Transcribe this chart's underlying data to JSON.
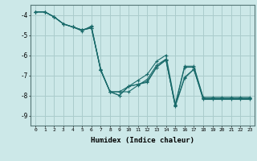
{
  "xlabel": "Humidex (Indice chaleur)",
  "xlim": [
    -0.5,
    23.5
  ],
  "ylim": [
    -9.5,
    -3.5
  ],
  "yticks": [
    -9,
    -8,
    -7,
    -6,
    -5,
    -4
  ],
  "xticks": [
    0,
    1,
    2,
    3,
    4,
    5,
    6,
    7,
    8,
    9,
    10,
    11,
    12,
    13,
    14,
    15,
    16,
    17,
    18,
    19,
    20,
    21,
    22,
    23
  ],
  "background_color": "#cce8e8",
  "grid_color": "#aacccc",
  "line_color": "#1a6b6b",
  "series": [
    {
      "x": [
        0,
        1,
        2,
        3,
        4,
        5,
        6,
        7,
        8,
        9,
        10,
        11,
        12,
        13,
        14,
        15,
        16,
        17,
        18,
        19,
        20,
        21,
        22,
        23
      ],
      "y": [
        -3.85,
        -3.85,
        -4.1,
        -4.45,
        -4.6,
        -4.75,
        -4.65,
        -6.75,
        -7.82,
        -7.82,
        -7.82,
        -7.5,
        -7.2,
        -6.5,
        -6.2,
        -8.5,
        -6.6,
        -6.6,
        -8.15,
        -8.15,
        -8.15,
        -8.15,
        -8.15,
        -8.15
      ]
    },
    {
      "x": [
        0,
        1,
        2,
        3,
        4,
        5,
        6,
        7,
        8,
        9,
        10,
        11,
        12,
        13,
        14,
        15,
        16,
        17,
        18,
        19,
        20,
        21,
        22,
        23
      ],
      "y": [
        -3.85,
        -3.85,
        -4.1,
        -4.45,
        -4.6,
        -4.75,
        -4.65,
        -6.7,
        -7.82,
        -7.82,
        -7.55,
        -7.25,
        -6.95,
        -6.3,
        -6.0,
        -8.45,
        -6.55,
        -6.55,
        -8.1,
        -8.1,
        -8.1,
        -8.1,
        -8.1,
        -8.1
      ]
    },
    {
      "x": [
        0,
        1,
        2,
        3,
        4,
        5,
        6,
        7,
        8,
        9,
        10,
        11,
        12,
        13,
        14,
        15,
        16,
        17,
        18,
        19,
        20,
        21,
        22,
        23
      ],
      "y": [
        -3.85,
        -3.85,
        -4.1,
        -4.45,
        -4.6,
        -4.75,
        -4.6,
        -6.75,
        -7.82,
        -8.0,
        -7.55,
        -7.45,
        -7.3,
        -6.6,
        -6.25,
        -8.5,
        -7.1,
        -6.7,
        -8.15,
        -8.15,
        -8.15,
        -8.15,
        -8.15,
        -8.15
      ]
    },
    {
      "x": [
        0,
        1,
        2,
        3,
        4,
        5,
        6,
        7,
        8,
        9,
        10,
        11,
        12,
        13,
        14,
        15,
        16,
        17,
        18,
        19,
        20,
        21,
        22,
        23
      ],
      "y": [
        -3.85,
        -3.85,
        -4.1,
        -4.45,
        -4.6,
        -4.8,
        -4.55,
        -6.75,
        -7.82,
        -8.0,
        -7.55,
        -7.45,
        -7.35,
        -6.6,
        -6.2,
        -8.55,
        -7.15,
        -6.7,
        -8.2,
        -8.2,
        -8.2,
        -8.2,
        -8.2,
        -8.2
      ]
    }
  ]
}
